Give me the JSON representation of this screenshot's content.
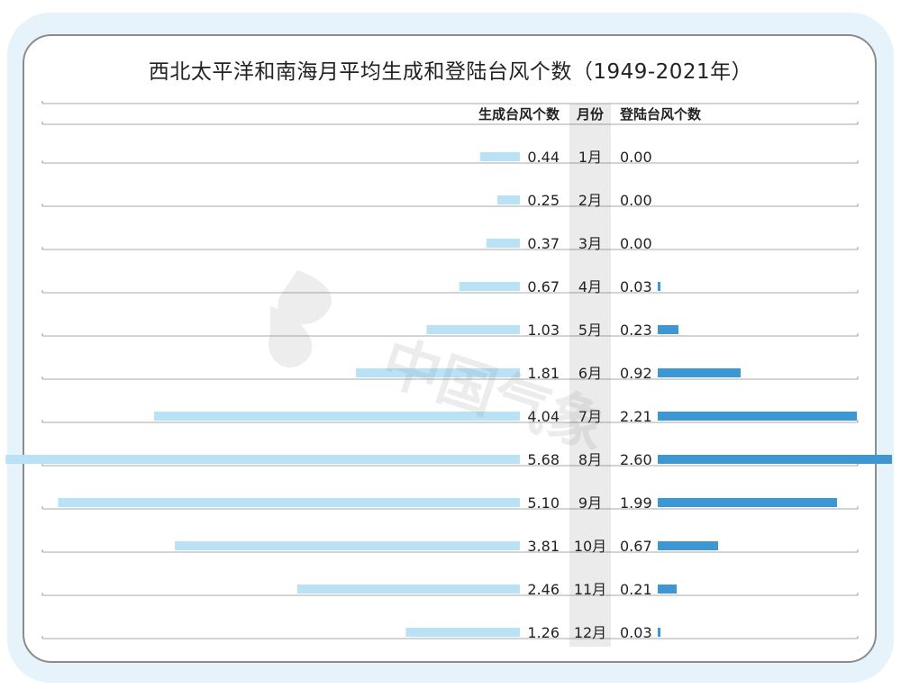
{
  "title": "西北太平洋和南海月平均生成和登陆台风个数（1949-2021年）",
  "watermark": "中国气象",
  "colors": {
    "formation_bar": "#b9e2f7",
    "landfall_bar": "#3d97d3",
    "month_column": "#ebebeb",
    "gridline": "#555555",
    "frame_bg": "#e6f3fb",
    "frame_border": "#8c8c8c",
    "text": "#222222"
  },
  "chart_data": {
    "type": "bar",
    "orientation": "horizontal-back-to-back",
    "title": "西北太平洋和南海月平均生成和登陆台风个数（1949-2021年）",
    "column_headers": {
      "left": "生成台风个数",
      "center": "月份",
      "right": "登陆台风个数"
    },
    "categories": [
      "1月",
      "2月",
      "3月",
      "4月",
      "5月",
      "6月",
      "7月",
      "8月",
      "9月",
      "10月",
      "11月",
      "12月"
    ],
    "series": [
      {
        "name": "生成台风个数",
        "values": [
          0.44,
          0.25,
          0.37,
          0.67,
          1.03,
          1.81,
          4.04,
          5.68,
          5.1,
          3.81,
          2.46,
          1.26
        ],
        "labels": [
          "0.44",
          "0.25",
          "0.37",
          "0.67",
          "1.03",
          "1.81",
          "4.04",
          "5.68",
          "5.10",
          "3.81",
          "2.46",
          "1.26"
        ]
      },
      {
        "name": "登陆台风个数",
        "values": [
          0.0,
          0.0,
          0.0,
          0.03,
          0.23,
          0.92,
          2.21,
          2.6,
          1.99,
          0.67,
          0.21,
          0.03
        ],
        "labels": [
          "0.00",
          "0.00",
          "0.00",
          "0.03",
          "0.23",
          "0.92",
          "2.21",
          "2.60",
          "1.99",
          "0.67",
          "0.21",
          "0.03"
        ]
      }
    ]
  }
}
